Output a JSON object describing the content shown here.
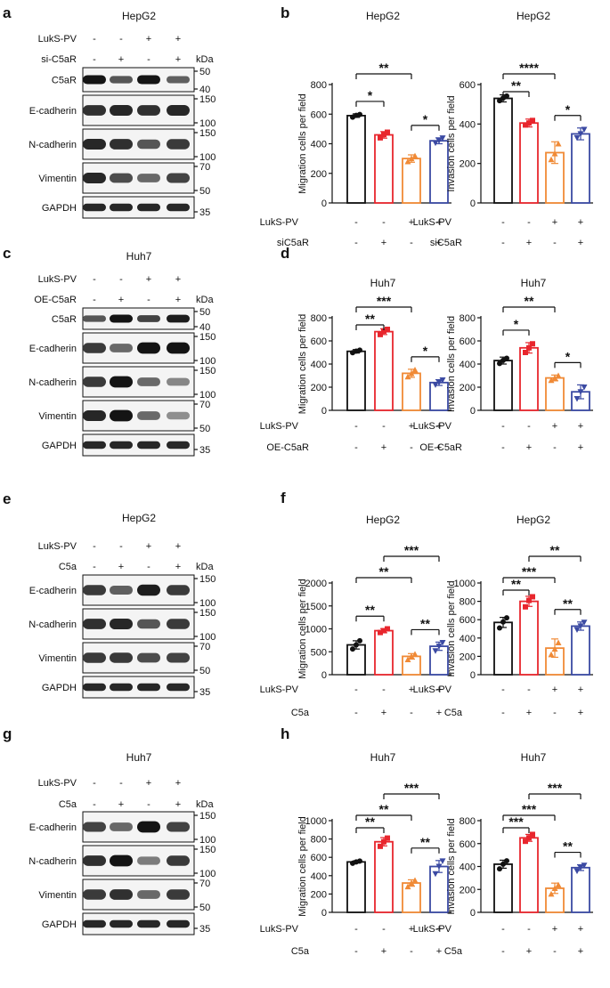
{
  "panels": [
    {
      "letter": "a",
      "kind": "blot",
      "cell": "HepG2",
      "conditions": [
        {
          "label": "LukS-PV",
          "signs": [
            "-",
            "-",
            "+",
            "+"
          ]
        },
        {
          "label": "si-C5aR",
          "signs": [
            "-",
            "+",
            "-",
            "+"
          ]
        }
      ],
      "kda_label": "kDa",
      "rows": [
        {
          "protein": "C5aR",
          "markers": [
            "50",
            "40"
          ],
          "intensity": [
            0.95,
            0.6,
            0.95,
            0.55
          ]
        },
        {
          "protein": "E-cadherin",
          "markers": [
            "150",
            "100"
          ],
          "intensity": [
            0.8,
            0.85,
            0.8,
            0.85
          ]
        },
        {
          "protein": "N-cadherin",
          "markers": [
            "150",
            "100"
          ],
          "intensity": [
            0.85,
            0.8,
            0.6,
            0.75
          ]
        },
        {
          "protein": "Vimentin",
          "markers": [
            "70",
            "50"
          ],
          "intensity": [
            0.85,
            0.65,
            0.5,
            0.7
          ]
        },
        {
          "protein": "GAPDH",
          "markers": [
            "35"
          ],
          "intensity": [
            0.85,
            0.85,
            0.85,
            0.85
          ]
        }
      ]
    },
    {
      "letter": "c",
      "kind": "blot",
      "cell": "Huh7",
      "conditions": [
        {
          "label": "LukS-PV",
          "signs": [
            "-",
            "-",
            "+",
            "+"
          ]
        },
        {
          "label": "OE-C5aR",
          "signs": [
            "-",
            "+",
            "-",
            "+"
          ]
        }
      ],
      "kda_label": "kDa",
      "rows": [
        {
          "protein": "C5aR",
          "markers": [
            "50",
            "40"
          ],
          "intensity": [
            0.6,
            0.95,
            0.7,
            0.9
          ]
        },
        {
          "protein": "E-cadherin",
          "markers": [
            "150",
            "100"
          ],
          "intensity": [
            0.75,
            0.5,
            0.95,
            0.95
          ]
        },
        {
          "protein": "N-cadherin",
          "markers": [
            "150",
            "100"
          ],
          "intensity": [
            0.75,
            0.95,
            0.5,
            0.35
          ]
        },
        {
          "protein": "Vimentin",
          "markers": [
            "70",
            "50"
          ],
          "intensity": [
            0.85,
            0.95,
            0.5,
            0.3
          ]
        },
        {
          "protein": "GAPDH",
          "markers": [
            "35"
          ],
          "intensity": [
            0.85,
            0.85,
            0.85,
            0.85
          ]
        }
      ]
    },
    {
      "letter": "e",
      "kind": "blot",
      "cell": "HepG2",
      "conditions": [
        {
          "label": "LukS-PV",
          "signs": [
            "-",
            "-",
            "+",
            "+"
          ]
        },
        {
          "label": "C5a",
          "signs": [
            "-",
            "+",
            "-",
            "+"
          ]
        }
      ],
      "kda_label": "kDa",
      "rows": [
        {
          "protein": "E-cadherin",
          "markers": [
            "150",
            "100"
          ],
          "intensity": [
            0.75,
            0.55,
            0.9,
            0.75
          ]
        },
        {
          "protein": "N-cadherin",
          "markers": [
            "150",
            "100"
          ],
          "intensity": [
            0.8,
            0.85,
            0.6,
            0.75
          ]
        },
        {
          "protein": "Vimentin",
          "markers": [
            "70",
            "50"
          ],
          "intensity": [
            0.75,
            0.75,
            0.65,
            0.7
          ]
        },
        {
          "protein": "GAPDH",
          "markers": [
            "35"
          ],
          "intensity": [
            0.85,
            0.85,
            0.85,
            0.85
          ]
        }
      ]
    },
    {
      "letter": "g",
      "kind": "blot",
      "cell": "Huh7",
      "conditions": [
        {
          "label": "LukS-PV",
          "signs": [
            "-",
            "-",
            "+",
            "+"
          ]
        },
        {
          "label": "C5a",
          "signs": [
            "-",
            "+",
            "-",
            "+"
          ]
        }
      ],
      "kda_label": "kDa",
      "rows": [
        {
          "protein": "E-cadherin",
          "markers": [
            "150",
            "100"
          ],
          "intensity": [
            0.7,
            0.5,
            0.95,
            0.7
          ]
        },
        {
          "protein": "N-cadherin",
          "markers": [
            "150",
            "100"
          ],
          "intensity": [
            0.8,
            0.95,
            0.4,
            0.75
          ]
        },
        {
          "protein": "Vimentin",
          "markers": [
            "70",
            "50"
          ],
          "intensity": [
            0.75,
            0.8,
            0.5,
            0.75
          ]
        },
        {
          "protein": "GAPDH",
          "markers": [
            "35"
          ],
          "intensity": [
            0.85,
            0.85,
            0.85,
            0.85
          ]
        }
      ]
    },
    {
      "letter": "b",
      "kind": "charts"
    },
    {
      "letter": "d",
      "kind": "charts"
    },
    {
      "letter": "f",
      "kind": "charts"
    },
    {
      "letter": "h",
      "kind": "charts"
    }
  ],
  "colors": {
    "control": "#111111",
    "knock": "#e8262d",
    "lukspv": "#f08a36",
    "combo": "#3b4aa3"
  },
  "chart_data": [
    {
      "panel": "b",
      "type": "bar",
      "title": "HepG2",
      "ylabel": "Migration cells per field",
      "yticks": [
        "0",
        "200",
        "400",
        "600",
        "800"
      ],
      "ylim": [
        0,
        800
      ],
      "conditions": [
        {
          "label": "LukS-PV",
          "signs": [
            "-",
            "-",
            "+",
            "+"
          ]
        },
        {
          "label": "siC5aR",
          "signs": [
            "-",
            "+",
            "-",
            "+"
          ]
        }
      ],
      "values": [
        590,
        460,
        300,
        420
      ],
      "points": [
        [
          580,
          592,
          598
        ],
        [
          440,
          462,
          478
        ],
        [
          280,
          300,
          318
        ],
        [
          405,
          420,
          438
        ]
      ],
      "errors": [
        12,
        22,
        25,
        20
      ],
      "sig": [
        {
          "from": 0,
          "to": 1,
          "label": "*",
          "level": 1
        },
        {
          "from": 2,
          "to": 3,
          "label": "*",
          "level": 1
        },
        {
          "from": 0,
          "to": 2,
          "label": "**",
          "level": 2
        }
      ]
    },
    {
      "panel": "b",
      "type": "bar",
      "title": "HepG2",
      "ylabel": "Invasion cells per field",
      "yticks": [
        "0",
        "200",
        "400",
        "600"
      ],
      "ylim": [
        0,
        600
      ],
      "conditions": [
        {
          "label": "LukS-PV",
          "signs": [
            "-",
            "-",
            "+",
            "+"
          ]
        },
        {
          "label": "siC5aR",
          "signs": [
            "-",
            "+",
            "-",
            "+"
          ]
        }
      ],
      "values": [
        530,
        405,
        255,
        350
      ],
      "points": [
        [
          518,
          532,
          542
        ],
        [
          395,
          405,
          418
        ],
        [
          220,
          250,
          300
        ],
        [
          330,
          350,
          372
        ]
      ],
      "errors": [
        18,
        20,
        55,
        30
      ],
      "sig": [
        {
          "from": 0,
          "to": 1,
          "label": "**",
          "level": 1
        },
        {
          "from": 2,
          "to": 3,
          "label": "*",
          "level": 1
        },
        {
          "from": 0,
          "to": 2,
          "label": "****",
          "level": 2
        }
      ]
    },
    {
      "panel": "d",
      "type": "bar",
      "title": "Huh7",
      "ylabel": "Migration cells per field",
      "yticks": [
        "0",
        "200",
        "400",
        "600",
        "800"
      ],
      "ylim": [
        0,
        800
      ],
      "conditions": [
        {
          "label": "LukS-PV",
          "signs": [
            "-",
            "-",
            "+",
            "+"
          ]
        },
        {
          "label": "OE-C5aR",
          "signs": [
            "-",
            "+",
            "-",
            "+"
          ]
        }
      ],
      "values": [
        510,
        680,
        320,
        240
      ],
      "points": [
        [
          498,
          512,
          520
        ],
        [
          655,
          685,
          700
        ],
        [
          290,
          318,
          350
        ],
        [
          220,
          240,
          262
        ]
      ],
      "errors": [
        15,
        25,
        35,
        25
      ],
      "sig": [
        {
          "from": 0,
          "to": 1,
          "label": "**",
          "level": 1
        },
        {
          "from": 2,
          "to": 3,
          "label": "*",
          "level": 1
        },
        {
          "from": 0,
          "to": 2,
          "label": "***",
          "level": 2
        }
      ]
    },
    {
      "panel": "d",
      "type": "bar",
      "title": "Huh7",
      "ylabel": "Invasion cells per field",
      "yticks": [
        "0",
        "200",
        "400",
        "600",
        "800"
      ],
      "ylim": [
        0,
        800
      ],
      "conditions": [
        {
          "label": "LukS-PV",
          "signs": [
            "-",
            "-",
            "+",
            "+"
          ]
        },
        {
          "label": "OE-C5aR",
          "signs": [
            "-",
            "+",
            "-",
            "+"
          ]
        }
      ],
      "values": [
        430,
        540,
        280,
        160
      ],
      "points": [
        [
          405,
          432,
          450
        ],
        [
          500,
          540,
          575
        ],
        [
          260,
          280,
          300
        ],
        [
          100,
          160,
          200
        ]
      ],
      "errors": [
        30,
        45,
        25,
        60
      ],
      "sig": [
        {
          "from": 0,
          "to": 1,
          "label": "*",
          "level": 1
        },
        {
          "from": 2,
          "to": 3,
          "label": "*",
          "level": 1
        },
        {
          "from": 0,
          "to": 2,
          "label": "**",
          "level": 2
        }
      ]
    },
    {
      "panel": "f",
      "type": "bar",
      "title": "HepG2",
      "ylabel": "Migration cells per field",
      "yticks": [
        "0",
        "500",
        "1000",
        "1500",
        "2000"
      ],
      "ylim": [
        0,
        2000
      ],
      "conditions": [
        {
          "label": "LukS-PV",
          "signs": [
            "-",
            "-",
            "+",
            "+"
          ]
        },
        {
          "label": "C5a",
          "signs": [
            "-",
            "+",
            "-",
            "+"
          ]
        }
      ],
      "values": [
        650,
        960,
        400,
        620
      ],
      "points": [
        [
          560,
          650,
          740
        ],
        [
          920,
          960,
          1000
        ],
        [
          330,
          400,
          450
        ],
        [
          520,
          620,
          700
        ]
      ],
      "errors": [
        90,
        45,
        60,
        90
      ],
      "sig": [
        {
          "from": 0,
          "to": 1,
          "label": "**",
          "level": 1
        },
        {
          "from": 2,
          "to": 3,
          "label": "**",
          "level": 1
        },
        {
          "from": 0,
          "to": 2,
          "label": "**",
          "level": 2
        },
        {
          "from": 1,
          "to": 3,
          "label": "***",
          "level": 3
        }
      ]
    },
    {
      "panel": "f",
      "type": "bar",
      "title": "HepG2",
      "ylabel": "Invasion cells per field",
      "yticks": [
        "0",
        "200",
        "400",
        "600",
        "800",
        "1000"
      ],
      "ylim": [
        0,
        1000
      ],
      "conditions": [
        {
          "label": "LukS-PV",
          "signs": [
            "-",
            "-",
            "+",
            "+"
          ]
        },
        {
          "label": "C5a",
          "signs": [
            "-",
            "+",
            "-",
            "+"
          ]
        }
      ],
      "values": [
        570,
        800,
        290,
        530
      ],
      "points": [
        [
          510,
          575,
          620
        ],
        [
          740,
          810,
          850
        ],
        [
          220,
          280,
          350
        ],
        [
          490,
          530,
          570
        ]
      ],
      "errors": [
        55,
        55,
        100,
        45
      ],
      "sig": [
        {
          "from": 0,
          "to": 1,
          "label": "**",
          "level": 1
        },
        {
          "from": 2,
          "to": 3,
          "label": "**",
          "level": 1
        },
        {
          "from": 0,
          "to": 2,
          "label": "***",
          "level": 2
        },
        {
          "from": 1,
          "to": 3,
          "label": "**",
          "level": 3
        }
      ]
    },
    {
      "panel": "h",
      "type": "bar",
      "title": "Huh7",
      "ylabel": "Migration cells per field",
      "yticks": [
        "0",
        "200",
        "400",
        "600",
        "800",
        "1000"
      ],
      "ylim": [
        0,
        1000
      ],
      "conditions": [
        {
          "label": "LukS-PV",
          "signs": [
            "-",
            "-",
            "+",
            "+"
          ]
        },
        {
          "label": "C5a",
          "signs": [
            "-",
            "+",
            "-",
            "+"
          ]
        }
      ],
      "values": [
        550,
        770,
        320,
        500
      ],
      "points": [
        [
          535,
          550,
          560
        ],
        [
          720,
          770,
          810
        ],
        [
          280,
          320,
          350
        ],
        [
          420,
          500,
          560
        ]
      ],
      "errors": [
        12,
        45,
        35,
        65
      ],
      "sig": [
        {
          "from": 0,
          "to": 1,
          "label": "**",
          "level": 1
        },
        {
          "from": 2,
          "to": 3,
          "label": "**",
          "level": 1
        },
        {
          "from": 0,
          "to": 2,
          "label": "**",
          "level": 2
        },
        {
          "from": 1,
          "to": 3,
          "label": "***",
          "level": 3
        }
      ]
    },
    {
      "panel": "h",
      "type": "bar",
      "title": "Huh7",
      "ylabel": "Invasion cells per field",
      "yticks": [
        "0",
        "200",
        "400",
        "600",
        "800"
      ],
      "ylim": [
        0,
        800
      ],
      "conditions": [
        {
          "label": "LukS-PV",
          "signs": [
            "-",
            "-",
            "+",
            "+"
          ]
        },
        {
          "label": "C5a",
          "signs": [
            "-",
            "+",
            "-",
            "+"
          ]
        }
      ],
      "values": [
        420,
        650,
        210,
        390
      ],
      "points": [
        [
          380,
          420,
          450
        ],
        [
          620,
          650,
          680
        ],
        [
          160,
          210,
          240
        ],
        [
          360,
          390,
          410
        ]
      ],
      "errors": [
        35,
        30,
        45,
        25
      ],
      "sig": [
        {
          "from": 0,
          "to": 1,
          "label": "***",
          "level": 1
        },
        {
          "from": 2,
          "to": 3,
          "label": "**",
          "level": 1
        },
        {
          "from": 0,
          "to": 2,
          "label": "***",
          "level": 2
        },
        {
          "from": 1,
          "to": 3,
          "label": "***",
          "level": 3
        }
      ]
    }
  ]
}
